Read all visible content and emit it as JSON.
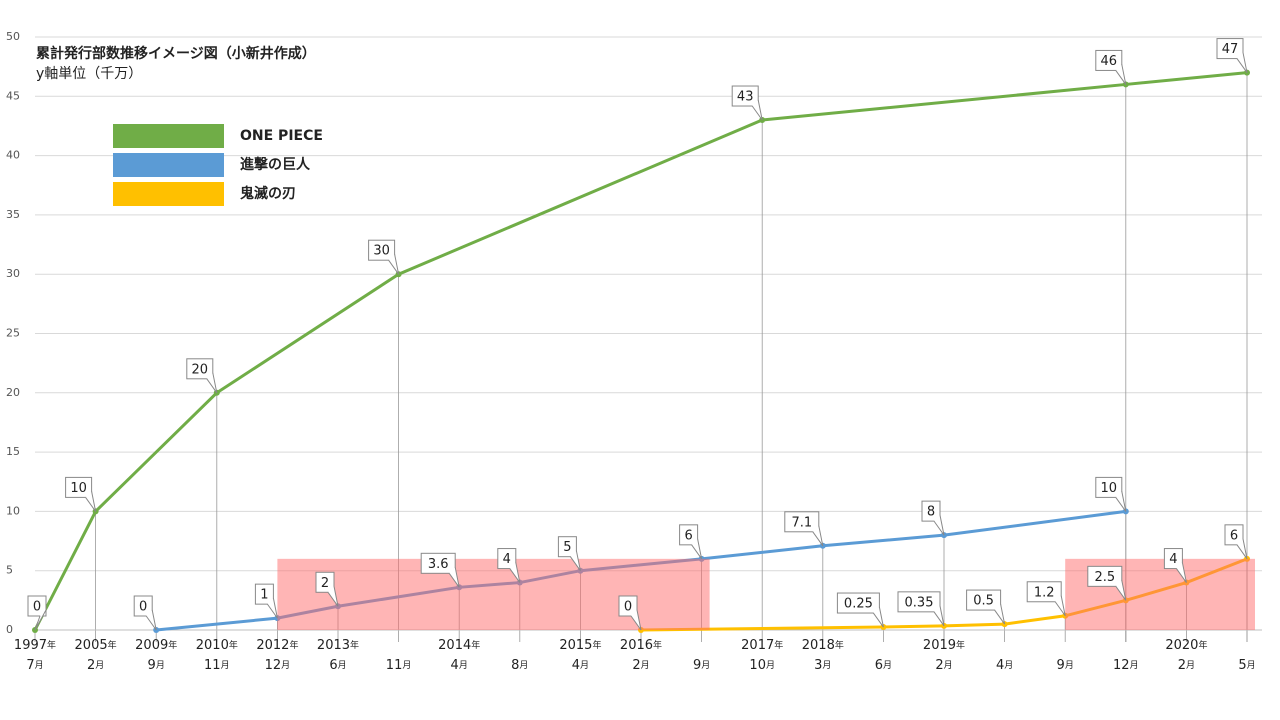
{
  "chart_data": {
    "type": "line",
    "title": "累計発行部数推移イメージ図（小新井作成）",
    "subtitle": "y軸単位（千万）",
    "categories": [
      "1997年7月",
      "2005年2月",
      "2009年9月",
      "2010年11月",
      "2012年12月",
      "2013年6月",
      "11月",
      "2014年4月",
      "8月",
      "2015年4月",
      "2016年2月",
      "9月",
      "2017年10月",
      "2018年3月",
      "6月",
      "2019年2月",
      "4月",
      "9月",
      "12月",
      "2020年2月",
      "5月"
    ],
    "ylim": [
      0,
      50
    ],
    "yticks": [
      0,
      5,
      10,
      15,
      20,
      25,
      30,
      35,
      40,
      45,
      50
    ],
    "grid": true,
    "legend": "upper left",
    "series": [
      {
        "name": "ONE PIECE",
        "color": "#70ad47",
        "x": [
          0,
          1,
          3,
          6,
          12,
          18,
          20
        ],
        "values": [
          0,
          10,
          20,
          30,
          43,
          46,
          47
        ]
      },
      {
        "name": "進撃の巨人",
        "color": "#5b9bd5",
        "x": [
          2,
          4,
          5,
          7,
          8,
          9,
          11,
          13,
          15,
          18
        ],
        "values": [
          0,
          1,
          2,
          3.6,
          4,
          5,
          6,
          7.1,
          8,
          10
        ]
      },
      {
        "name": "鬼滅の刃",
        "color": "#ffc000",
        "x": [
          10,
          14,
          15,
          16,
          17,
          18,
          19,
          20
        ],
        "values": [
          0,
          0.25,
          0.35,
          0.5,
          1.2,
          2.5,
          4,
          6
        ]
      }
    ],
    "highlights": [
      {
        "x": [
          4,
          11
        ],
        "y": [
          0,
          6
        ]
      },
      {
        "x": [
          17,
          20
        ],
        "y": [
          0,
          6
        ]
      }
    ],
    "highlight_color": "#ff6b6b"
  }
}
